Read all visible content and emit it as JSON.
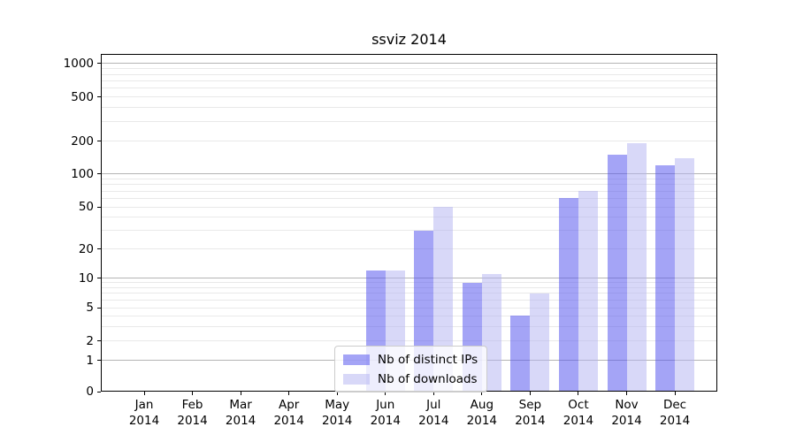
{
  "chart_data": {
    "type": "bar",
    "title": "ssviz 2014",
    "categories": [
      "Jan",
      "Feb",
      "Mar",
      "Apr",
      "May",
      "Jun",
      "Jul",
      "Aug",
      "Sep",
      "Oct",
      "Nov",
      "Dec"
    ],
    "x_tick_second_line": "2014",
    "series": [
      {
        "name": "Nb of distinct IPs",
        "color": "rgba(84,84,238,0.53)",
        "apparent_color": "#a6a6f6",
        "values": [
          0,
          0,
          0,
          0,
          0,
          12,
          30,
          9,
          4,
          60,
          150,
          120
        ]
      },
      {
        "name": "Nb of downloads",
        "color": "rgba(177,177,242,0.5)",
        "apparent_color": "#d8d8f8",
        "values": [
          0,
          0,
          0,
          0,
          0,
          12,
          50,
          11,
          7,
          70,
          190,
          140
        ]
      }
    ],
    "yscale": "symlog",
    "ylim": [
      0,
      1200
    ],
    "y_ticks": [
      0,
      1,
      2,
      5,
      10,
      20,
      50,
      100,
      200,
      500,
      1000
    ],
    "y_major_grid_values": [
      1,
      10,
      100,
      1000
    ],
    "grid": true,
    "legend_entries": [
      "Nb of distinct IPs",
      "Nb of downloads"
    ],
    "legend_position": "lower center-left inside plot"
  },
  "colors": {
    "minor_grid": "#e9e9e9",
    "major_grid": "#b4b4b4",
    "spine": "#000000",
    "legend_border": "#cccccc"
  }
}
